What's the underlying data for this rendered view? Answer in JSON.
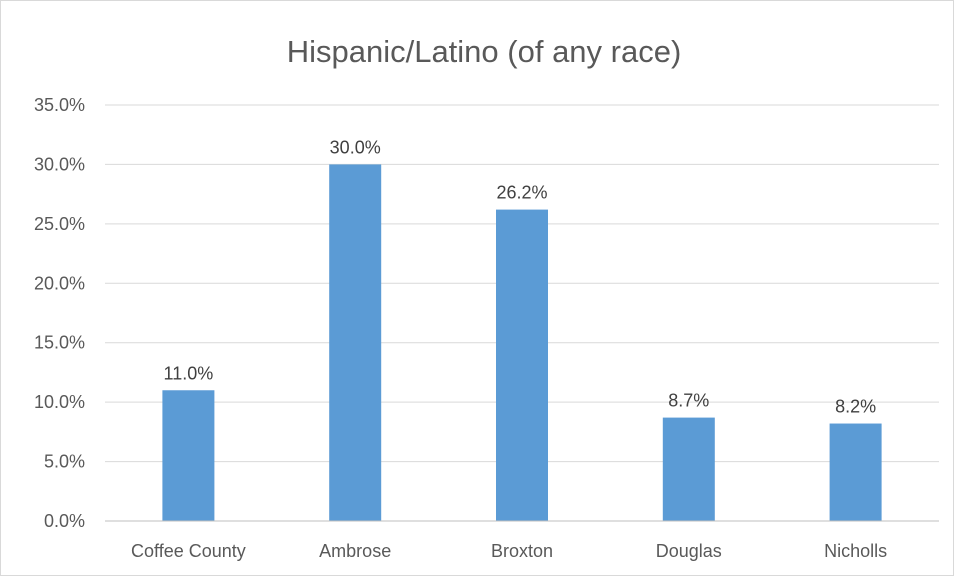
{
  "chart_data": {
    "type": "bar",
    "title": "Hispanic/Latino (of any race)",
    "xlabel": "",
    "ylabel": "",
    "categories": [
      "Coffee County",
      "Ambrose",
      "Broxton",
      "Douglas",
      "Nicholls"
    ],
    "values": [
      11.0,
      30.0,
      26.2,
      8.7,
      8.2
    ],
    "data_labels": [
      "11.0%",
      "30.0%",
      "26.2%",
      "8.7%",
      "8.2%"
    ],
    "ylim": [
      0,
      35
    ],
    "yticks": [
      0,
      5,
      10,
      15,
      20,
      25,
      30,
      35
    ],
    "ytick_labels": [
      "0.0%",
      "5.0%",
      "10.0%",
      "15.0%",
      "20.0%",
      "25.0%",
      "30.0%",
      "35.0%"
    ],
    "grid": true,
    "legend": "none",
    "bar_color": "#5b9bd5"
  }
}
